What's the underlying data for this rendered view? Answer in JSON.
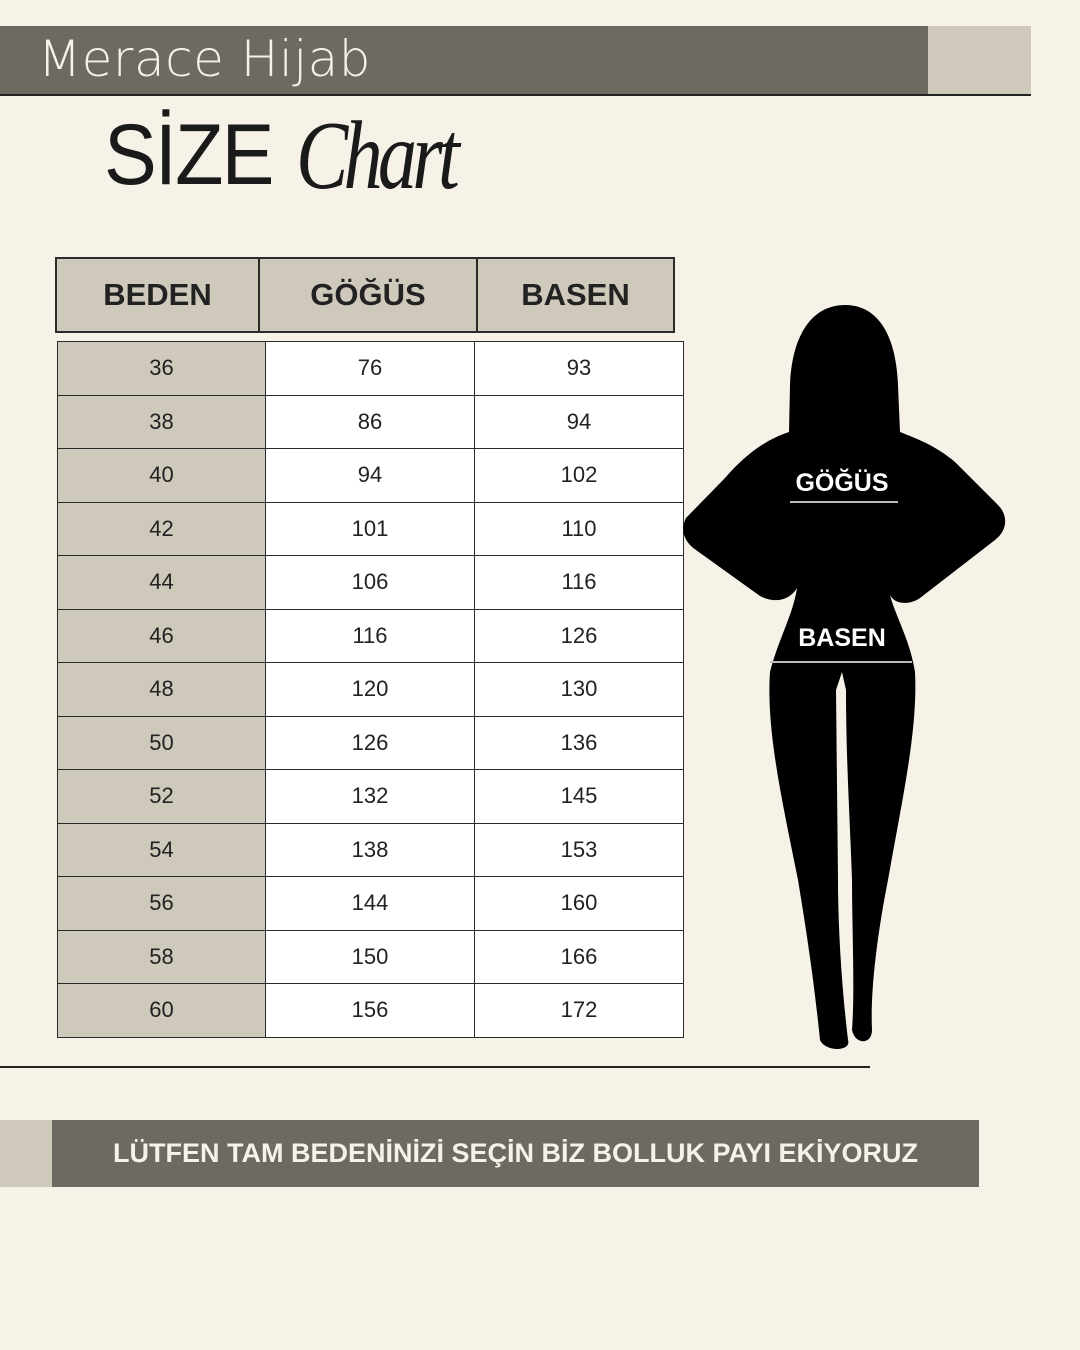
{
  "brand": "Merace Hijab",
  "title": {
    "main": "SİZE",
    "script": "Chart"
  },
  "table": {
    "headers": [
      "BEDEN",
      "GÖĞÜS",
      "BASEN"
    ],
    "rows": [
      [
        "36",
        "76",
        "93"
      ],
      [
        "38",
        "86",
        "94"
      ],
      [
        "40",
        "94",
        "102"
      ],
      [
        "42",
        "101",
        "110"
      ],
      [
        "44",
        "106",
        "116"
      ],
      [
        "46",
        "116",
        "126"
      ],
      [
        "48",
        "120",
        "130"
      ],
      [
        "50",
        "126",
        "136"
      ],
      [
        "52",
        "132",
        "145"
      ],
      [
        "54",
        "138",
        "153"
      ],
      [
        "56",
        "144",
        "160"
      ],
      [
        "58",
        "150",
        "166"
      ],
      [
        "60",
        "156",
        "172"
      ]
    ]
  },
  "figure": {
    "chest_label": "GÖĞÜS",
    "hip_label": "BASEN"
  },
  "footer": "LÜTFEN TAM BEDENİNİZİ SEÇİN BİZ BOLLUK PAYI EKİYORUZ",
  "colors": {
    "background": "#f6f2e8",
    "dark": "#6e6a61",
    "light": "#cfc9bc"
  }
}
